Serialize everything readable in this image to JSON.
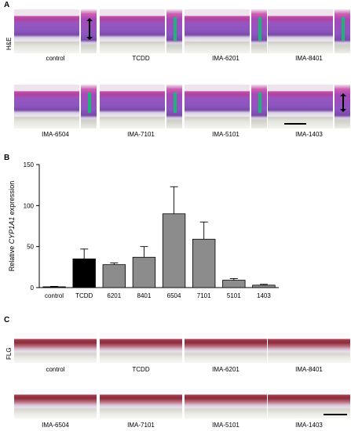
{
  "panels": {
    "a": {
      "letter": "A",
      "stain": "H&E",
      "row1": [
        "control",
        "TCDD",
        "IMA-6201",
        "IMA-8401"
      ],
      "row2": [
        "IMA-6504",
        "IMA-7101",
        "IMA-5101",
        "IMA-1403"
      ]
    },
    "b": {
      "letter": "B"
    },
    "c": {
      "letter": "C",
      "stain": "FLG",
      "row1": [
        "control",
        "TCDD",
        "IMA-6201",
        "IMA-8401"
      ],
      "row2": [
        "IMA-6504",
        "IMA-7101",
        "IMA-5101",
        "IMA-1403"
      ]
    }
  },
  "chart_data": {
    "type": "bar",
    "categories": [
      "control",
      "TCDD",
      "6201",
      "8401",
      "6504",
      "7101",
      "5101",
      "1403"
    ],
    "values": [
      1,
      35,
      28,
      37,
      90,
      59,
      9,
      3
    ],
    "errors": [
      0.5,
      12,
      2,
      13,
      33,
      21,
      2,
      1
    ],
    "bar_colors": [
      "#000000",
      "#000000",
      "#8c8c8c",
      "#8c8c8c",
      "#8c8c8c",
      "#8c8c8c",
      "#8c8c8c",
      "#8c8c8c"
    ],
    "ylabel_prefix": "Relative ",
    "ylabel_gene": "CYP1A1",
    "ylabel_suffix": " expression",
    "ylim": [
      0,
      150
    ],
    "yticks": [
      "0",
      "50",
      "100",
      "150"
    ],
    "grid": false
  }
}
